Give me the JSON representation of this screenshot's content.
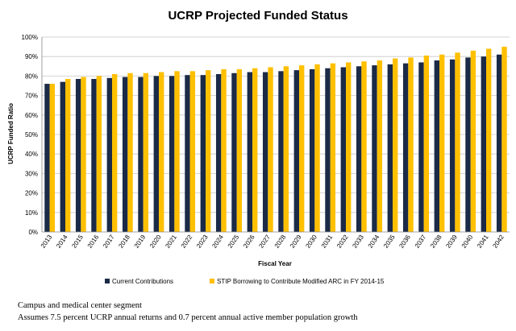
{
  "chart_data": {
    "type": "bar",
    "title": "UCRP Projected Funded Status",
    "xlabel": "Fiscal Year",
    "ylabel": "UCRP Funded Ratio",
    "ylim": [
      0,
      100
    ],
    "yticks": [
      "0%",
      "10%",
      "20%",
      "30%",
      "40%",
      "50%",
      "60%",
      "70%",
      "80%",
      "90%",
      "100%"
    ],
    "grid": true,
    "legend_position": "bottom",
    "categories": [
      "2013",
      "2014",
      "2015",
      "2016",
      "2017",
      "2018",
      "2019",
      "2020",
      "2021",
      "2022",
      "2023",
      "2024",
      "2025",
      "2026",
      "2027",
      "2028",
      "2029",
      "2030",
      "2031",
      "2032",
      "2033",
      "2034",
      "2035",
      "2036",
      "2037",
      "2038",
      "2039",
      "2040",
      "2041",
      "2042"
    ],
    "series": [
      {
        "name": "Current Contributions",
        "color": "#1b2a47",
        "values": [
          76,
          77,
          78.5,
          78.5,
          79,
          79.5,
          79.5,
          80,
          80,
          80.5,
          80.5,
          81,
          81.5,
          82,
          82,
          82.5,
          83,
          83.5,
          84,
          84.5,
          85,
          85.5,
          86,
          86.5,
          87,
          88,
          88.5,
          89.5,
          90,
          91
        ]
      },
      {
        "name": "STIP Borrowing to Contribute Modified ARC in FY 2014-15",
        "color": "#ffc000",
        "values": [
          76,
          78.5,
          79.5,
          80,
          81,
          81.5,
          81.5,
          82,
          82.5,
          82.5,
          83,
          83.5,
          83.5,
          84,
          84.5,
          85,
          85.5,
          86,
          86.5,
          87,
          87.5,
          88,
          89,
          89.5,
          90.5,
          91,
          92,
          93,
          94,
          95
        ]
      }
    ]
  },
  "notes": {
    "line1": "Campus and medical center segment",
    "line2": "Assumes 7.5 percent UCRP annual returns and 0.7 percent annual active member population growth"
  }
}
